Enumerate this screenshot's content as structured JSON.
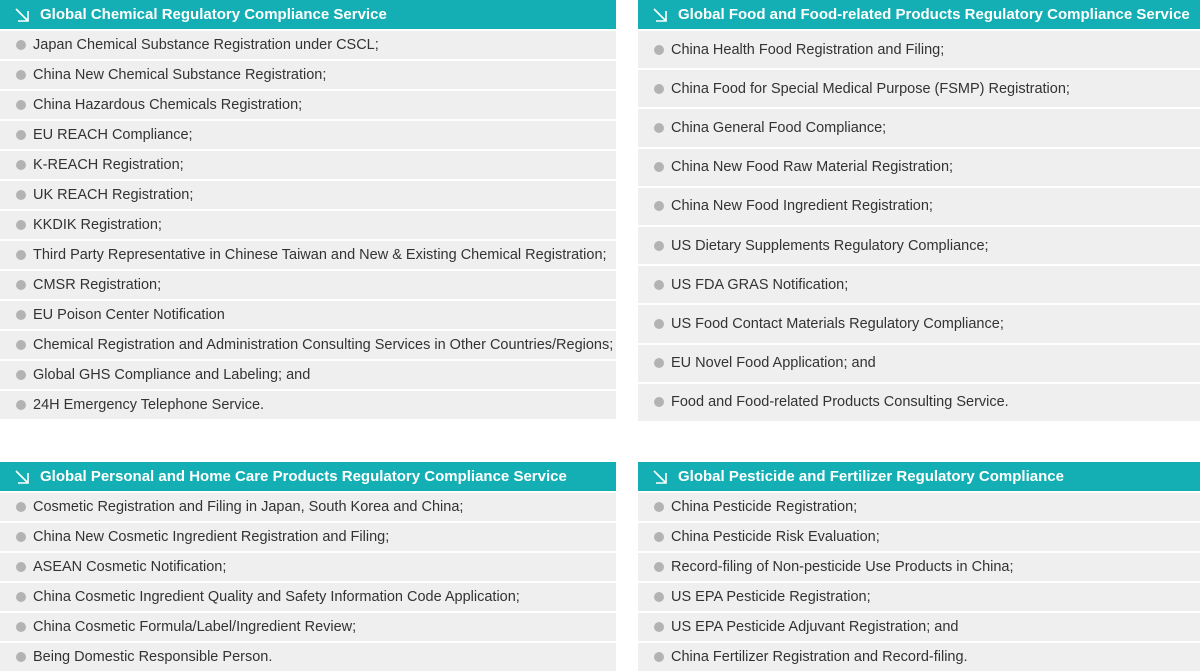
{
  "colors": {
    "header": "#13afb4",
    "row": "#efefef",
    "bullet": "#b3b3b3"
  },
  "icon": "arrow-down-right-icon",
  "panels": [
    {
      "title": "Global Chemical Regulatory Compliance Service",
      "items": [
        "Japan Chemical Substance Registration under CSCL;",
        "China New Chemical Substance Registration;",
        "China Hazardous Chemicals Registration;",
        "EU REACH Compliance;",
        "K-REACH Registration;",
        "UK REACH Registration;",
        "KKDIK Registration;",
        "Third Party Representative in Chinese Taiwan and New & Existing Chemical Registration;",
        "CMSR Registration;",
        "EU Poison Center Notification",
        "Chemical Registration and Administration Consulting Services in Other Countries/Regions;",
        "Global GHS Compliance and Labeling; and",
        "24H Emergency Telephone Service."
      ]
    },
    {
      "title": "Global Food and Food-related Products Regulatory Compliance Service",
      "items": [
        "China Health Food Registration and Filing;",
        "China Food for Special Medical Purpose (FSMP) Registration;",
        "China General Food Compliance;",
        "China New Food Raw Material Registration;",
        "China New Food Ingredient Registration;",
        "US Dietary Supplements Regulatory Compliance;",
        "US FDA GRAS Notification;",
        "US Food Contact Materials Regulatory Compliance;",
        "EU Novel Food Application; and",
        "Food and Food-related Products Consulting Service."
      ]
    },
    {
      "title": "Global Personal and Home Care Products Regulatory Compliance Service",
      "items": [
        "Cosmetic Registration and Filing in Japan, South Korea and China;",
        "China New Cosmetic Ingredient Registration and Filing;",
        "ASEAN Cosmetic Notification;",
        "China Cosmetic Ingredient Quality and Safety Information Code Application;",
        "China Cosmetic Formula/Label/Ingredient Review;",
        "Being Domestic Responsible Person."
      ]
    },
    {
      "title": "Global Pesticide and Fertilizer Regulatory Compliance",
      "items": [
        "China Pesticide Registration;",
        "China Pesticide Risk Evaluation;",
        "Record-filing of Non-pesticide Use Products in China;",
        "US EPA Pesticide Registration;",
        "US EPA Pesticide Adjuvant Registration; and",
        "China Fertilizer Registration and Record-filing."
      ]
    }
  ]
}
